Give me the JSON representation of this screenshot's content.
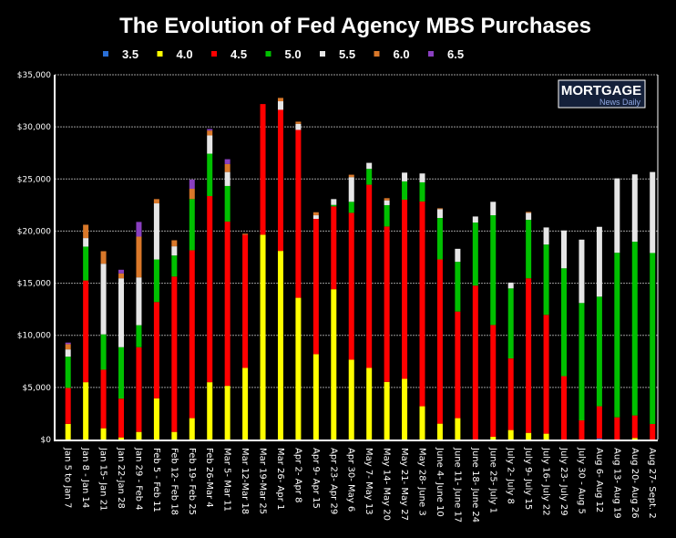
{
  "chart_data": {
    "type": "bar",
    "stacked": true,
    "title": "The Evolution of Fed Agency MBS Purchases",
    "xlabel": "",
    "ylabel": "",
    "ylim": [
      0,
      35000
    ],
    "yticks": [
      "$0",
      "$5,000",
      "$10,000",
      "$15,000",
      "$20,000",
      "$25,000",
      "$30,000",
      "$35,000"
    ],
    "ytick_values": [
      0,
      5000,
      10000,
      15000,
      20000,
      25000,
      30000,
      35000
    ],
    "grid": true,
    "legend_position": "top",
    "logo": {
      "line1": "MORTGAGE",
      "line2": "News Daily"
    },
    "categories": [
      "Jan 5 to Jan 7",
      "Jan 8 - Jan 14",
      "Jan 15- Jan 21",
      "Jan 22-Jan 28",
      "Jan 29 - Feb 4",
      "Feb 5 - Feb 11",
      "Feb 12- Feb 18",
      "Feb 19- Feb 25",
      "Feb 26-Mar 4",
      "Mar 5- Mar 11",
      "Mar 12-Mar 18",
      "Mar 19-Mar 25",
      "Mar 26- Apr 1",
      "Apr 2- Apr 8",
      "Apr 9- Apr 15",
      "Apr 23- Apr 29",
      "Apr 30- May 6",
      "May 7- May 13",
      "May 14- May 20",
      "May 21- May 27",
      "May 28- June 3",
      "June 4- June 10",
      "June 11- June 17",
      "June 18- June 24",
      "June 25- July 1",
      "July 2- July 8",
      "July 9- July 15",
      "July 16- July 22",
      "July 23- July 29",
      "July 30 - Aug 5",
      "Aug 6- Aug 12",
      "Aug 13- Aug 19",
      "Aug 20- Aug 26",
      "Aug 27- Sept. 2"
    ],
    "series": [
      {
        "name": "3.5",
        "color": "#2a6fd6",
        "values": [
          0,
          0,
          0,
          0,
          0,
          0,
          0,
          0,
          0,
          0,
          0,
          0,
          0,
          0,
          0,
          0,
          0,
          0,
          0,
          0,
          0,
          0,
          0,
          0,
          0,
          0,
          0,
          0,
          0,
          0,
          100,
          0,
          0,
          0
        ]
      },
      {
        "name": "4.0",
        "color": "#ffff00",
        "values": [
          1500,
          5500,
          1080,
          200,
          730,
          3950,
          730,
          2050,
          5500,
          5150,
          6870,
          19650,
          18100,
          13600,
          8190,
          14420,
          7660,
          6870,
          5530,
          5820,
          3190,
          1520,
          2050,
          0,
          260,
          910,
          640,
          560,
          0,
          0,
          0,
          0,
          150,
          0
        ]
      },
      {
        "name": "4.5",
        "color": "#ff0000",
        "values": [
          3450,
          9760,
          5620,
          3720,
          8130,
          9240,
          14910,
          16110,
          17860,
          15760,
          12780,
          12540,
          13540,
          16110,
          12980,
          7950,
          14090,
          17580,
          14910,
          17190,
          19650,
          15760,
          10230,
          14770,
          10730,
          6870,
          14830,
          11400,
          6080,
          1840,
          3090,
          2130,
          2160,
          1490
        ]
      },
      {
        "name": "5.0",
        "color": "#00c000",
        "values": [
          3000,
          3250,
          3390,
          4940,
          2110,
          4090,
          2020,
          4910,
          4070,
          3420,
          0,
          0,
          0,
          0,
          0,
          140,
          1060,
          1520,
          2050,
          1760,
          1840,
          3980,
          4770,
          6050,
          10530,
          6720,
          5610,
          6750,
          10350,
          11260,
          10520,
          15790,
          16670,
          16410
        ]
      },
      {
        "name": "5.5",
        "color": "#e6e6e6",
        "values": [
          700,
          820,
          6780,
          6610,
          4590,
          5380,
          880,
          0,
          1750,
          1340,
          0,
          0,
          820,
          580,
          350,
          560,
          2370,
          580,
          460,
          840,
          850,
          850,
          1250,
          580,
          1290,
          560,
          670,
          1640,
          3630,
          6080,
          6700,
          7140,
          6460,
          7770
        ]
      },
      {
        "name": "6.0",
        "color": "#d9782a",
        "values": [
          500,
          1280,
          1200,
          470,
          3910,
          410,
          580,
          990,
          470,
          760,
          100,
          0,
          320,
          210,
          290,
          0,
          230,
          0,
          210,
          0,
          0,
          80,
          0,
          0,
          0,
          0,
          90,
          0,
          0,
          0,
          0,
          0,
          0,
          0
        ]
      },
      {
        "name": "6.5",
        "color": "#8a3fc0",
        "values": [
          150,
          0,
          0,
          350,
          1410,
          0,
          0,
          880,
          150,
          470,
          0,
          0,
          0,
          0,
          0,
          0,
          0,
          0,
          0,
          0,
          0,
          0,
          0,
          0,
          0,
          0,
          0,
          0,
          0,
          0,
          0,
          0,
          0,
          0
        ]
      }
    ]
  }
}
